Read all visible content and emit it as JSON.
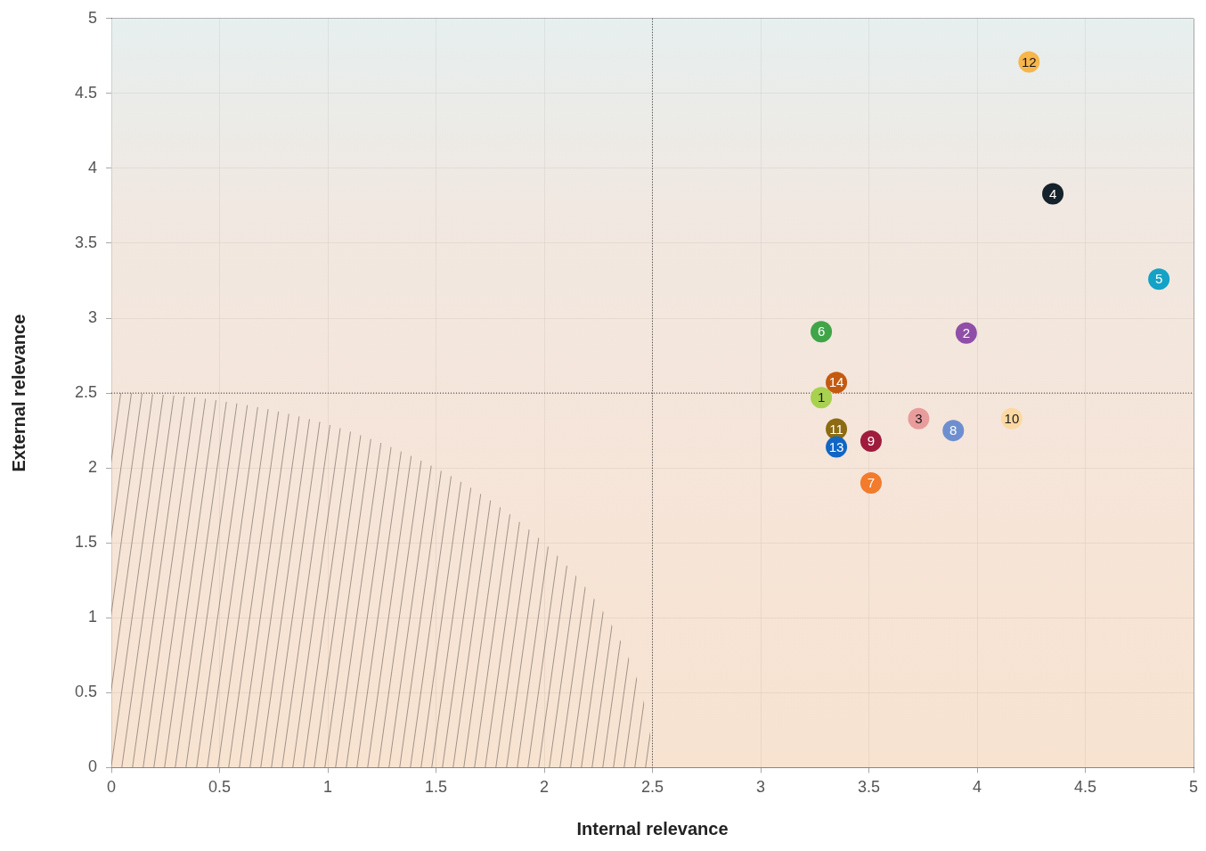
{
  "chart_data": {
    "type": "scatter",
    "x_label": "Internal relevance",
    "y_label": "External relevance",
    "point_labels": [
      "1",
      "2",
      "3",
      "4",
      "5",
      "6",
      "7",
      "8",
      "9",
      "10",
      "11",
      "12",
      "13",
      "14"
    ],
    "x": [
      3.28,
      3.95,
      3.73,
      4.35,
      4.84,
      3.28,
      3.51,
      3.89,
      3.51,
      4.16,
      3.35,
      4.24,
      3.35,
      3.35
    ],
    "y": [
      2.47,
      2.9,
      2.33,
      3.83,
      3.26,
      2.91,
      1.9,
      2.25,
      2.18,
      2.33,
      2.26,
      4.71,
      2.14,
      2.57
    ],
    "colors": [
      "#a8d14f",
      "#8f4fa8",
      "#e99c9c",
      "#15222b",
      "#14a2c6",
      "#3fa548",
      "#f27b2c",
      "#6e8fcf",
      "#9f1c3d",
      "#fcd9a2",
      "#8c6b12",
      "#f7b64c",
      "#1166c4",
      "#c45a10"
    ],
    "xlim": [
      0,
      5
    ],
    "ylim": [
      0,
      5
    ],
    "xticks": [
      0,
      0.5,
      1,
      1.5,
      2,
      2.5,
      3,
      3.5,
      4,
      4.5,
      5
    ],
    "yticks": [
      0,
      0.5,
      1,
      1.5,
      2,
      2.5,
      3,
      3.5,
      4,
      4.5,
      5
    ],
    "grid": true,
    "reference_lines": {
      "x": 2.5,
      "y": 2.5
    },
    "shaded_region": {
      "x_radius": 2.5,
      "y_radius": 2.5
    }
  }
}
